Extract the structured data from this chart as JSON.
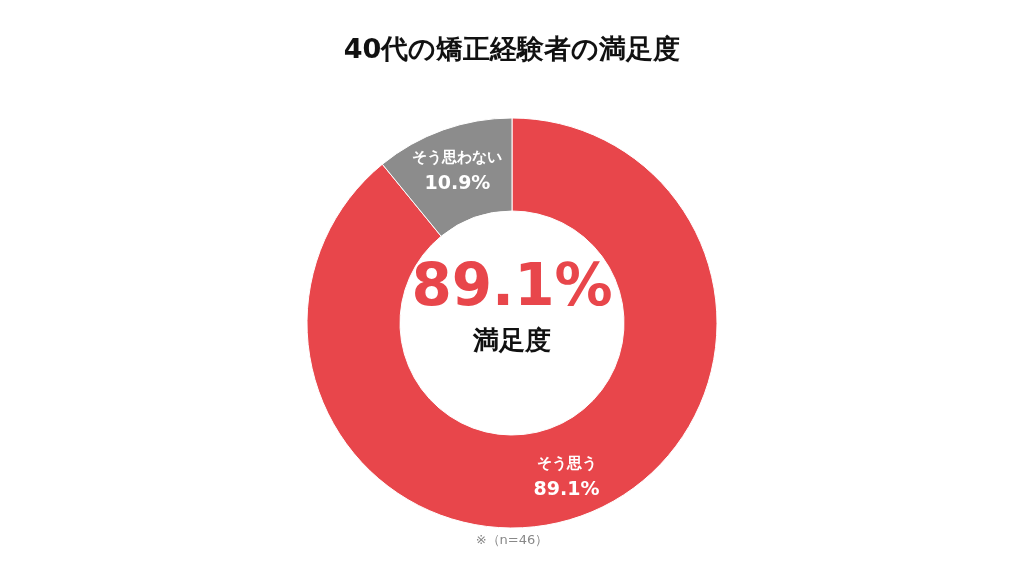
{
  "chart_data": {
    "type": "donut",
    "title": "40代の矯正経験者の満足度",
    "categories": [
      "そう思う",
      "そう思わない"
    ],
    "values": [
      89.1,
      10.9
    ],
    "colors": [
      "#e8464b",
      "#8c8c8c"
    ],
    "value_labels": [
      "89.1%",
      "10.9%"
    ],
    "annotations": [
      "89.1%",
      "満足度",
      "※（n=46）"
    ]
  }
}
